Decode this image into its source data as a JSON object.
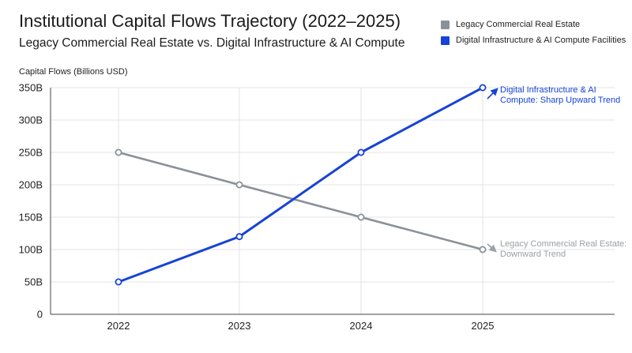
{
  "chart_data": {
    "type": "line",
    "title": "Institutional Capital Flows Trajectory (2022–2025)",
    "subtitle": "Legacy Commercial Real Estate vs. Digital Infrastructure & AI Compute",
    "ylabel": "Capital Flows (Billions USD)",
    "xlabel": "",
    "categories": [
      "2022",
      "2023",
      "2024",
      "2025"
    ],
    "ylim": [
      0,
      350
    ],
    "yticks": [
      0,
      50,
      100,
      150,
      200,
      250,
      300,
      350
    ],
    "ytick_labels": [
      "0",
      "50B",
      "100B",
      "150B",
      "200B",
      "250B",
      "300B",
      "350B"
    ],
    "grid": "both",
    "legend_position": "top-right",
    "series": [
      {
        "name": "Legacy Commercial Real Estate",
        "values": [
          250,
          200,
          150,
          100
        ],
        "color": "#8a9199"
      },
      {
        "name": "Digital Infrastructure & AI Compute Facilities",
        "values": [
          50,
          120,
          250,
          350
        ],
        "color": "#1743d6"
      }
    ],
    "annotations": [
      {
        "series": 1,
        "lines": [
          "Digital Infrastructure & AI",
          "Compute: Sharp Upward Trend"
        ],
        "arrow": "up-right-arrow-icon",
        "color": "#1743d6"
      },
      {
        "series": 0,
        "lines": [
          "Legacy Commercial Real Estate:",
          "Downward Trend"
        ],
        "arrow": "down-right-arrow-icon",
        "color": "#9aa0a6"
      }
    ]
  }
}
